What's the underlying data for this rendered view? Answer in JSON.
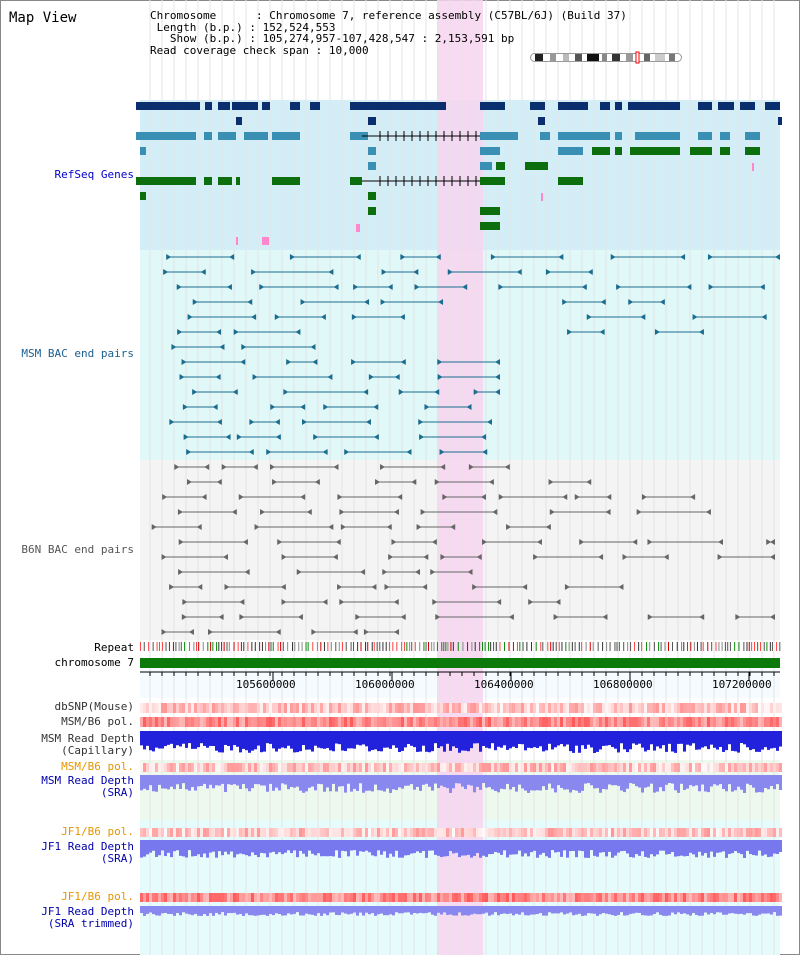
{
  "title": "Map View",
  "info": {
    "chromosome_label": "Chromosome",
    "chromosome_value": "Chromosome 7, reference assembly (C57BL/6J) (Build 37)",
    "length_label": "Length (b.p.)",
    "length_value": "152,524,553",
    "show_label": "Show (b.p.)",
    "show_value": "105,274,957-107,428,547 : 2,153,591 bp",
    "coverage_label": "Read coverage check span",
    "coverage_value": "10,000"
  },
  "tracks": {
    "refseq": "RefSeq Genes",
    "msm_bac": "MSM BAC end pairs",
    "b6n_bac": "B6N BAC end pairs",
    "repeat": "Repeat",
    "chromosome": "chromosome 7",
    "dbsnp": "dbSNP(Mouse)",
    "msm_b6_pol": "MSM/B6 pol.",
    "msm_rd_cap_1": "MSM Read Depth",
    "msm_rd_cap_2": "(Capillary)",
    "msm_b6_pol2": "MSM/B6 pol.",
    "msm_rd_sra_1": "MSM Read Depth",
    "msm_rd_sra_2": "(SRA)",
    "jf1_b6_pol": "JF1/B6 pol.",
    "jf1_rd_1": "JF1 Read Depth",
    "jf1_rd_2": "(SRA)",
    "jf1_b6_pol2": "JF1/B6 pol.",
    "jf1_rd_trim_1": "JF1 Read Depth",
    "jf1_rd_trim_2": "(SRA trimmed)"
  },
  "ruler": {
    "ticks": [
      "105600000",
      "106000000",
      "106400000",
      "106800000",
      "107200000"
    ]
  },
  "colors": {
    "refseq_bg": "#d4eef8",
    "msm_bg": "#e0f8f8",
    "b6n_bg": "#f4f4f4",
    "highlight": "#f7d3f0",
    "gene_dark": "#0a2e6e",
    "gene_mid": "#3a8fb5",
    "gene_green": "#0d6e0d",
    "bac_blue": "#1b6d8f",
    "bac_gray": "#666666",
    "chrom_green": "#0b7a0b"
  }
}
